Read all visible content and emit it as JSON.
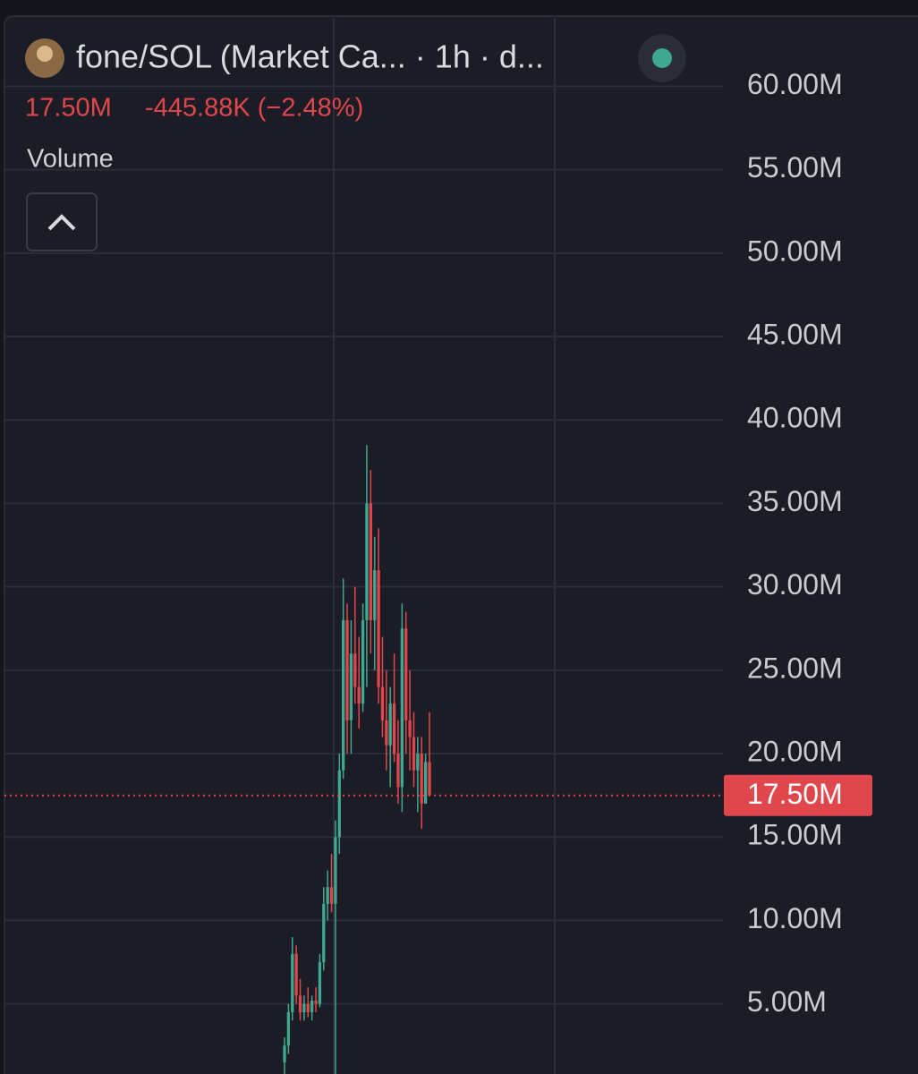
{
  "chart_data": {
    "type": "candlestick",
    "title": "fone/SOL (Market Ca... · 1h · d...",
    "price": "17.50M",
    "change": "-445.88K (−2.48%)",
    "indicator": "Volume",
    "ylim": [
      0.8,
      64.1
    ],
    "yticks": [
      {
        "value": 5,
        "label": "5.00M"
      },
      {
        "value": 10,
        "label": "10.00M"
      },
      {
        "value": 15,
        "label": "15.00M"
      },
      {
        "value": 20,
        "label": "20.00M"
      },
      {
        "value": 25,
        "label": "25.00M"
      },
      {
        "value": 30,
        "label": "30.00M"
      },
      {
        "value": 35,
        "label": "35.00M"
      },
      {
        "value": 40,
        "label": "40.00M"
      },
      {
        "value": 45,
        "label": "45.00M"
      },
      {
        "value": 50,
        "label": "50.00M"
      },
      {
        "value": 55,
        "label": "55.00M"
      },
      {
        "value": 60,
        "label": "60.00M"
      }
    ],
    "last_price": {
      "value": 17.5,
      "label": "17.50M",
      "color": "#e0474c"
    },
    "grid": true,
    "up_color": "#3fa98f",
    "down_color": "#e0474c",
    "open": [
      1.5,
      2.5,
      4.5,
      8,
      5.5,
      4.5,
      5,
      4.5,
      5.2,
      5,
      7.5,
      11,
      12,
      11,
      15,
      19,
      28,
      22,
      26,
      24,
      23,
      28,
      35,
      28,
      31,
      24,
      22,
      20.5,
      23,
      20,
      18,
      27.5,
      22,
      21,
      19,
      20,
      17,
      19.5
    ],
    "high": [
      3,
      5,
      9,
      8.5,
      6.5,
      5.5,
      6,
      5.5,
      6,
      8,
      12,
      13,
      14,
      16,
      20,
      30.5,
      29,
      28,
      30,
      27,
      29,
      38.5,
      37,
      33,
      33.5,
      27,
      25,
      24,
      26,
      22,
      29,
      28.5,
      25,
      22.5,
      21,
      21,
      20,
      22.5
    ],
    "low": [
      0.8,
      2,
      4,
      5,
      4,
      4,
      4.2,
      4,
      4.5,
      4.8,
      7,
      10,
      10.5,
      0.8,
      14,
      18.5,
      20,
      20,
      23,
      21.5,
      22.5,
      24,
      26,
      25,
      23,
      21,
      19,
      18,
      19.5,
      17,
      16.5,
      20,
      19,
      18,
      16.5,
      15.5,
      17,
      17.5
    ],
    "close": [
      2.5,
      4.5,
      8,
      5.5,
      4.5,
      5,
      4.5,
      5.2,
      5,
      7.5,
      11,
      12,
      11,
      15,
      19,
      28,
      22,
      26,
      24,
      23,
      28,
      35,
      28,
      31,
      24,
      22,
      20.5,
      23,
      20,
      18,
      27.5,
      22,
      21,
      19,
      20,
      17,
      19.5,
      17.5
    ]
  }
}
